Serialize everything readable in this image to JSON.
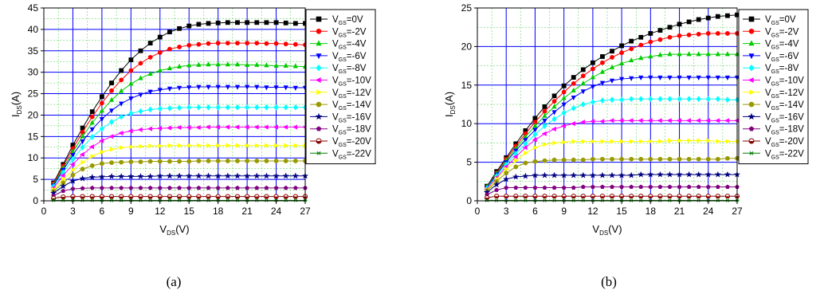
{
  "captions": [
    "(a)",
    "(b)"
  ],
  "chart_data": [
    {
      "type": "line",
      "panel": "(a)",
      "xlabel": {
        "main": "V",
        "sub": "DS",
        "unit": "(V)"
      },
      "ylabel": {
        "main": "I",
        "sub": "DS",
        "unit": "(A)"
      },
      "xlim": [
        0,
        27
      ],
      "ylim": [
        0,
        45
      ],
      "xticks": [
        0,
        3,
        6,
        9,
        12,
        15,
        18,
        21,
        24,
        27
      ],
      "yticks": [
        0,
        5,
        10,
        15,
        20,
        25,
        30,
        35,
        40,
        45
      ],
      "x": [
        1,
        2,
        3,
        4,
        5,
        6,
        7,
        8,
        9,
        10,
        11,
        12,
        13,
        14,
        15,
        16,
        17,
        18,
        19,
        20,
        21,
        22,
        23,
        24,
        25,
        26,
        27
      ],
      "grid": true,
      "legend_position": "right",
      "series": [
        {
          "name": "V_GS=0V",
          "label": {
            "main": "V",
            "sub": "GS",
            "tail": "=0V"
          },
          "marker": "square",
          "color": "#000000",
          "values": [
            4.2,
            8.5,
            13.0,
            17.0,
            20.8,
            24.3,
            27.5,
            30.4,
            32.9,
            35.0,
            36.8,
            38.2,
            39.4,
            40.2,
            40.8,
            41.2,
            41.4,
            41.5,
            41.6,
            41.6,
            41.6,
            41.6,
            41.6,
            41.6,
            41.5,
            41.4,
            41.4
          ]
        },
        {
          "name": "V_GS=-2V",
          "label": {
            "main": "V",
            "sub": "GS",
            "tail": "=-2V"
          },
          "marker": "circle",
          "color": "#ff0000",
          "values": [
            4.0,
            8.1,
            12.2,
            16.0,
            19.6,
            22.8,
            25.7,
            28.2,
            30.4,
            32.1,
            33.5,
            34.6,
            35.4,
            35.9,
            36.3,
            36.5,
            36.7,
            36.8,
            36.8,
            36.8,
            36.8,
            36.8,
            36.7,
            36.7,
            36.6,
            36.5,
            36.4
          ]
        },
        {
          "name": "V_GS=-4V",
          "label": {
            "main": "V",
            "sub": "GS",
            "tail": "=-4V"
          },
          "marker": "triangle-up",
          "color": "#00cc00",
          "values": [
            3.8,
            7.6,
            11.4,
            15.0,
            18.2,
            21.0,
            23.5,
            25.6,
            27.3,
            28.6,
            29.6,
            30.4,
            30.9,
            31.3,
            31.6,
            31.7,
            31.8,
            31.8,
            31.8,
            31.8,
            31.7,
            31.7,
            31.6,
            31.5,
            31.5,
            31.4,
            31.3
          ]
        },
        {
          "name": "V_GS=-6V",
          "label": {
            "main": "V",
            "sub": "GS",
            "tail": "=-6V"
          },
          "marker": "triangle-down",
          "color": "#0000ff",
          "values": [
            3.6,
            7.2,
            10.7,
            13.9,
            16.7,
            19.1,
            21.1,
            22.7,
            23.9,
            24.8,
            25.5,
            25.9,
            26.2,
            26.4,
            26.5,
            26.6,
            26.6,
            26.6,
            26.6,
            26.6,
            26.6,
            26.6,
            26.5,
            26.5,
            26.5,
            26.4,
            26.4
          ]
        },
        {
          "name": "V_GS=-8V",
          "label": {
            "main": "V",
            "sub": "GS",
            "tail": "=-8V"
          },
          "marker": "diamond",
          "color": "#00ffff",
          "values": [
            3.3,
            6.6,
            9.7,
            12.5,
            14.9,
            16.8,
            18.4,
            19.6,
            20.4,
            20.9,
            21.3,
            21.5,
            21.6,
            21.7,
            21.8,
            21.8,
            21.8,
            21.8,
            21.8,
            21.8,
            21.8,
            21.8,
            21.8,
            21.8,
            21.8,
            21.8,
            21.8
          ]
        },
        {
          "name": "V_GS=-10V",
          "label": {
            "main": "V",
            "sub": "GS",
            "tail": "=-10V"
          },
          "marker": "triangle-left",
          "color": "#ff00ff",
          "values": [
            3.0,
            5.9,
            8.5,
            10.8,
            12.6,
            14.0,
            15.0,
            15.8,
            16.3,
            16.6,
            16.8,
            16.9,
            17.0,
            17.1,
            17.1,
            17.1,
            17.2,
            17.2,
            17.2,
            17.2,
            17.2,
            17.2,
            17.2,
            17.2,
            17.2,
            17.2,
            17.2
          ]
        },
        {
          "name": "V_GS=-12V",
          "label": {
            "main": "V",
            "sub": "GS",
            "tail": "=-12V"
          },
          "marker": "triangle-right",
          "color": "#ffff00",
          "values": [
            2.6,
            5.0,
            7.2,
            9.0,
            10.4,
            11.4,
            12.0,
            12.4,
            12.6,
            12.7,
            12.8,
            12.8,
            12.9,
            12.9,
            12.9,
            12.9,
            12.9,
            12.9,
            12.9,
            12.9,
            12.9,
            12.9,
            12.9,
            12.9,
            12.9,
            12.9,
            12.9
          ]
        },
        {
          "name": "V_GS=-14V",
          "label": {
            "main": "V",
            "sub": "GS",
            "tail": "=-14V"
          },
          "marker": "circle",
          "color": "#999900",
          "values": [
            2.2,
            4.2,
            6.0,
            7.4,
            8.2,
            8.7,
            8.9,
            9.0,
            9.1,
            9.1,
            9.2,
            9.2,
            9.2,
            9.2,
            9.2,
            9.3,
            9.3,
            9.3,
            9.3,
            9.3,
            9.3,
            9.3,
            9.3,
            9.3,
            9.3,
            9.3,
            9.3
          ]
        },
        {
          "name": "V_GS=-16V",
          "label": {
            "main": "V",
            "sub": "GS",
            "tail": "=-16V"
          },
          "marker": "star",
          "color": "#000080",
          "values": [
            1.8,
            3.4,
            4.6,
            5.2,
            5.5,
            5.6,
            5.7,
            5.7,
            5.7,
            5.7,
            5.7,
            5.8,
            5.8,
            5.8,
            5.8,
            5.8,
            5.8,
            5.8,
            5.8,
            5.8,
            5.8,
            5.8,
            5.8,
            5.8,
            5.8,
            5.8,
            5.8
          ]
        },
        {
          "name": "V_GS=-18V",
          "label": {
            "main": "V",
            "sub": "GS",
            "tail": "=-18V"
          },
          "marker": "pentagon",
          "color": "#800080",
          "values": [
            1.2,
            2.3,
            2.8,
            2.9,
            3.0,
            3.0,
            3.0,
            3.0,
            3.0,
            3.0,
            3.0,
            3.0,
            3.0,
            3.0,
            3.0,
            3.0,
            3.0,
            3.0,
            3.0,
            3.0,
            3.0,
            3.0,
            3.0,
            3.0,
            3.0,
            3.0,
            3.0
          ]
        },
        {
          "name": "V_GS=-20V",
          "label": {
            "main": "V",
            "sub": "GS",
            "tail": "=-20V"
          },
          "marker": "circle-half",
          "color": "#8b0000",
          "values": [
            0.6,
            0.9,
            1.0,
            1.0,
            1.0,
            1.0,
            1.0,
            1.0,
            1.0,
            1.0,
            1.0,
            1.0,
            1.0,
            1.0,
            1.0,
            1.0,
            1.0,
            1.0,
            1.0,
            1.0,
            1.0,
            1.0,
            1.0,
            1.0,
            1.0,
            1.0,
            1.0
          ]
        },
        {
          "name": "V_GS=-22V",
          "label": {
            "main": "V",
            "sub": "GS",
            "tail": "=-22V"
          },
          "marker": "asterisk",
          "color": "#008000",
          "values": [
            0.1,
            0.1,
            0.1,
            0.1,
            0.1,
            0.1,
            0.1,
            0.1,
            0.1,
            0.1,
            0.1,
            0.1,
            0.1,
            0.1,
            0.1,
            0.1,
            0.1,
            0.1,
            0.1,
            0.1,
            0.1,
            0.1,
            0.1,
            0.1,
            0.1,
            0.1,
            0.1
          ]
        }
      ]
    },
    {
      "type": "line",
      "panel": "(b)",
      "xlabel": {
        "main": "V",
        "sub": "DS",
        "unit": "(V)"
      },
      "ylabel": {
        "main": "I",
        "sub": "DS",
        "unit": "(A)"
      },
      "xlim": [
        0,
        27
      ],
      "ylim": [
        0,
        25
      ],
      "xticks": [
        0,
        3,
        6,
        9,
        12,
        15,
        18,
        21,
        24,
        27
      ],
      "yticks": [
        0,
        5,
        10,
        15,
        20,
        25
      ],
      "x": [
        1,
        2,
        3,
        4,
        5,
        6,
        7,
        8,
        9,
        10,
        11,
        12,
        13,
        14,
        15,
        16,
        17,
        18,
        19,
        20,
        21,
        22,
        23,
        24,
        25,
        26,
        27
      ],
      "grid": true,
      "legend_position": "right",
      "series": [
        {
          "name": "V_GS=0V",
          "label": {
            "main": "V",
            "sub": "GS",
            "tail": "=0V"
          },
          "marker": "square",
          "color": "#000000",
          "values": [
            1.9,
            3.8,
            5.6,
            7.4,
            9.1,
            10.7,
            12.2,
            13.6,
            14.9,
            16.0,
            17.0,
            17.9,
            18.7,
            19.4,
            20.1,
            20.7,
            21.2,
            21.7,
            22.1,
            22.5,
            22.9,
            23.2,
            23.5,
            23.7,
            23.9,
            24.0,
            24.1
          ]
        },
        {
          "name": "V_GS=-2V",
          "label": {
            "main": "V",
            "sub": "GS",
            "tail": "=-2V"
          },
          "marker": "circle",
          "color": "#ff0000",
          "values": [
            1.8,
            3.6,
            5.4,
            7.1,
            8.7,
            10.2,
            11.6,
            12.9,
            14.1,
            15.2,
            16.2,
            17.1,
            17.9,
            18.6,
            19.2,
            19.7,
            20.2,
            20.6,
            20.9,
            21.2,
            21.4,
            21.5,
            21.6,
            21.7,
            21.7,
            21.7,
            21.7
          ]
        },
        {
          "name": "V_GS=-4V",
          "label": {
            "main": "V",
            "sub": "GS",
            "tail": "=-4V"
          },
          "marker": "triangle-up",
          "color": "#00cc00",
          "values": [
            1.8,
            3.5,
            5.2,
            6.8,
            8.3,
            9.7,
            11.0,
            12.2,
            13.3,
            14.3,
            15.2,
            16.0,
            16.7,
            17.3,
            17.8,
            18.2,
            18.5,
            18.7,
            18.9,
            19.0,
            19.0,
            19.0,
            19.0,
            19.0,
            19.0,
            19.0,
            19.0
          ]
        },
        {
          "name": "V_GS=-6V",
          "label": {
            "main": "V",
            "sub": "GS",
            "tail": "=-6V"
          },
          "marker": "triangle-down",
          "color": "#0000ff",
          "values": [
            1.7,
            3.4,
            5.0,
            6.5,
            7.9,
            9.2,
            10.4,
            11.5,
            12.5,
            13.4,
            14.2,
            14.8,
            15.3,
            15.6,
            15.8,
            15.9,
            16.0,
            16.0,
            16.0,
            16.0,
            16.0,
            16.0,
            16.0,
            16.0,
            16.0,
            16.0,
            16.0
          ]
        },
        {
          "name": "V_GS=-8V",
          "label": {
            "main": "V",
            "sub": "GS",
            "tail": "=-8V"
          },
          "marker": "diamond",
          "color": "#00ffff",
          "values": [
            1.6,
            3.2,
            4.7,
            6.1,
            7.4,
            8.6,
            9.7,
            10.6,
            11.4,
            12.0,
            12.5,
            12.8,
            13.0,
            13.1,
            13.1,
            13.2,
            13.2,
            13.2,
            13.2,
            13.2,
            13.2,
            13.2,
            13.2,
            13.2,
            13.2,
            13.1,
            13.1
          ]
        },
        {
          "name": "V_GS=-10V",
          "label": {
            "main": "V",
            "sub": "GS",
            "tail": "=-10V"
          },
          "marker": "triangle-left",
          "color": "#ff00ff",
          "values": [
            1.5,
            3.0,
            4.4,
            5.7,
            6.9,
            7.9,
            8.7,
            9.3,
            9.7,
            10.0,
            10.2,
            10.3,
            10.3,
            10.4,
            10.4,
            10.4,
            10.4,
            10.4,
            10.4,
            10.4,
            10.4,
            10.4,
            10.4,
            10.4,
            10.4,
            10.4,
            10.4
          ]
        },
        {
          "name": "V_GS=-12V",
          "label": {
            "main": "V",
            "sub": "GS",
            "tail": "=-12V"
          },
          "marker": "triangle-right",
          "color": "#ffff00",
          "values": [
            1.4,
            2.8,
            4.1,
            5.2,
            6.2,
            6.9,
            7.3,
            7.5,
            7.6,
            7.7,
            7.7,
            7.7,
            7.7,
            7.7,
            7.7,
            7.7,
            7.7,
            7.7,
            7.7,
            7.8,
            7.8,
            7.8,
            7.8,
            7.8,
            7.7,
            7.7,
            7.7
          ]
        },
        {
          "name": "V_GS=-14V",
          "label": {
            "main": "V",
            "sub": "GS",
            "tail": "=-14V"
          },
          "marker": "circle",
          "color": "#999900",
          "values": [
            1.3,
            2.5,
            3.6,
            4.4,
            4.9,
            5.1,
            5.2,
            5.3,
            5.3,
            5.3,
            5.3,
            5.4,
            5.4,
            5.4,
            5.4,
            5.4,
            5.4,
            5.4,
            5.4,
            5.4,
            5.4,
            5.4,
            5.4,
            5.4,
            5.4,
            5.5,
            5.5
          ]
        },
        {
          "name": "V_GS=-16V",
          "label": {
            "main": "V",
            "sub": "GS",
            "tail": "=-16V"
          },
          "marker": "star",
          "color": "#000080",
          "values": [
            1.1,
            2.1,
            2.8,
            3.1,
            3.2,
            3.3,
            3.3,
            3.3,
            3.3,
            3.3,
            3.3,
            3.3,
            3.3,
            3.3,
            3.3,
            3.3,
            3.4,
            3.4,
            3.4,
            3.4,
            3.4,
            3.4,
            3.4,
            3.4,
            3.4,
            3.4,
            3.4
          ]
        },
        {
          "name": "V_GS=-18V",
          "label": {
            "main": "V",
            "sub": "GS",
            "tail": "=-18V"
          },
          "marker": "pentagon",
          "color": "#800080",
          "values": [
            0.8,
            1.4,
            1.7,
            1.7,
            1.7,
            1.7,
            1.7,
            1.7,
            1.7,
            1.7,
            1.8,
            1.8,
            1.8,
            1.8,
            1.8,
            1.8,
            1.8,
            1.8,
            1.8,
            1.8,
            1.8,
            1.8,
            1.8,
            1.8,
            1.8,
            1.8,
            1.8
          ]
        },
        {
          "name": "V_GS=-20V",
          "label": {
            "main": "V",
            "sub": "GS",
            "tail": "=-20V"
          },
          "marker": "circle-half",
          "color": "#8b0000",
          "values": [
            0.4,
            0.6,
            0.6,
            0.6,
            0.6,
            0.6,
            0.6,
            0.6,
            0.6,
            0.6,
            0.6,
            0.6,
            0.6,
            0.6,
            0.6,
            0.6,
            0.6,
            0.6,
            0.6,
            0.6,
            0.6,
            0.6,
            0.6,
            0.6,
            0.6,
            0.6,
            0.6
          ]
        },
        {
          "name": "V_GS=-22V",
          "label": {
            "main": "V",
            "sub": "GS",
            "tail": "=-22V"
          },
          "marker": "asterisk",
          "color": "#008000",
          "values": [
            0.05,
            0.05,
            0.05,
            0.05,
            0.05,
            0.05,
            0.05,
            0.05,
            0.05,
            0.05,
            0.05,
            0.05,
            0.05,
            0.05,
            0.05,
            0.05,
            0.05,
            0.05,
            0.05,
            0.05,
            0.05,
            0.05,
            0.05,
            0.05,
            0.05,
            0.05,
            0.05
          ]
        }
      ]
    }
  ]
}
